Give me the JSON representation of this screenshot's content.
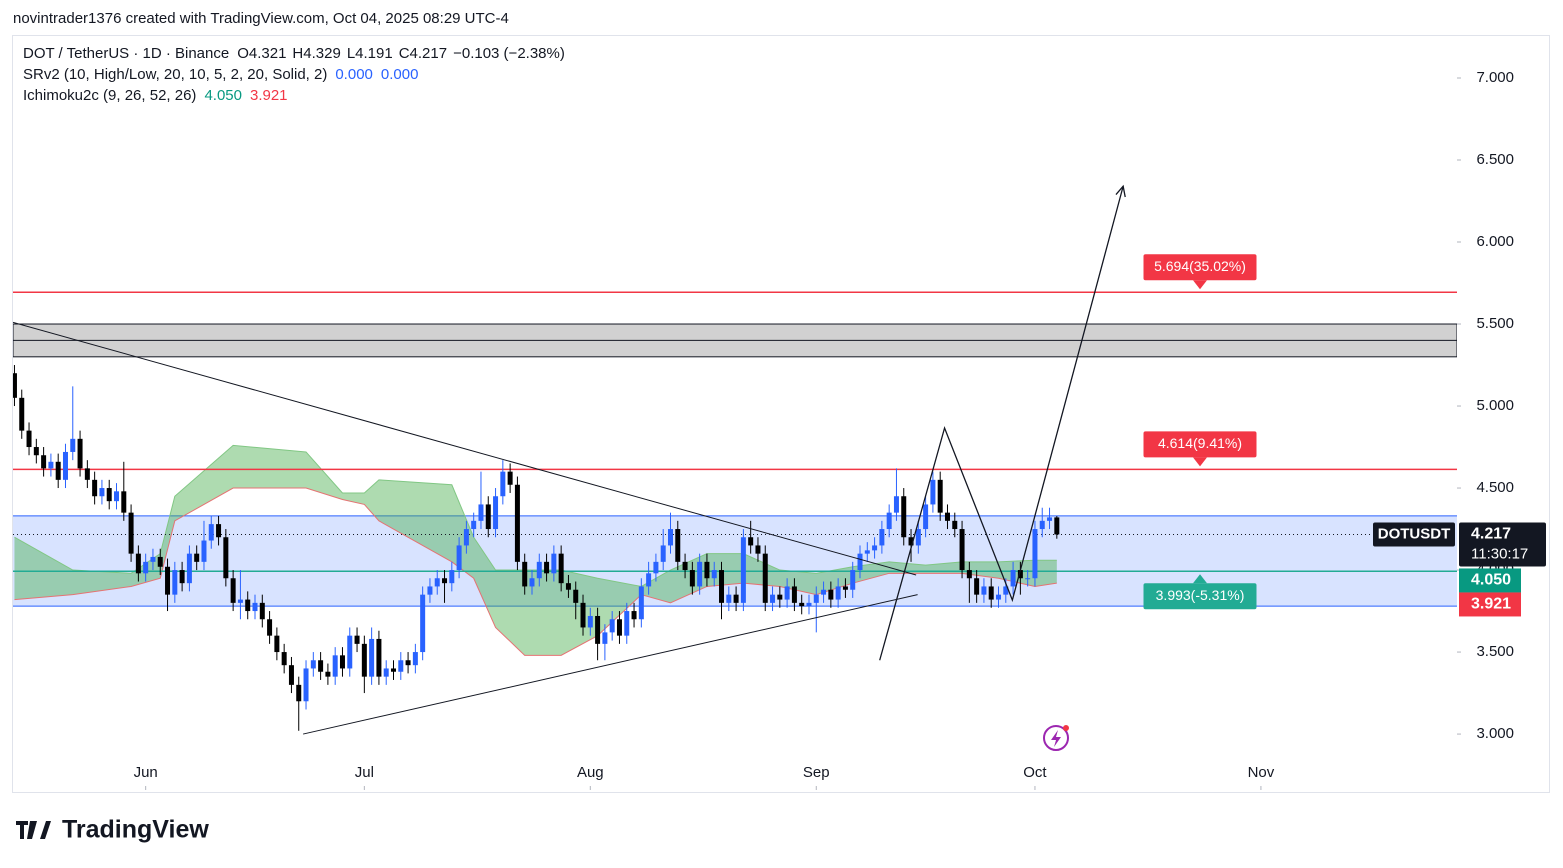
{
  "header": {
    "attribution": "novintrader1376 created with TradingView.com, Oct 04, 2025 08:29 UTC-4"
  },
  "footer": {
    "brand": "TradingView"
  },
  "chart_data": {
    "type": "candlestick",
    "legend": {
      "symbol": "DOT / TetherUS · 1D · Binance",
      "ohlc_keys": [
        "O",
        "H",
        "L",
        "C"
      ],
      "change": "−0.103 (−2.38%)"
    },
    "indicators": [
      {
        "name": "SRv2 (10, High/Low, 20, 10, 5, 2, 20, Solid, 2)",
        "values": [
          0,
          0
        ],
        "value_labels": [
          "0.000",
          "0.000"
        ],
        "colors": [
          "#2962ff",
          "#2962ff"
        ]
      },
      {
        "name": "Ichimoku2c (9, 26, 52, 26)",
        "values": [
          4.05,
          3.921
        ],
        "value_labels": [
          "4.050",
          "3.921"
        ],
        "colors": [
          "#089981",
          "#f23645"
        ]
      }
    ],
    "up_color": "#2962ff",
    "down_color": "#000000",
    "open": [
      5.2,
      5.05,
      4.85,
      4.75,
      4.7,
      4.62,
      4.66,
      4.55,
      4.72,
      4.8,
      4.62,
      4.55,
      4.45,
      4.5,
      4.42,
      4.48,
      4.35,
      4.1,
      3.98,
      4.05,
      4.08,
      4.02,
      3.85,
      4.0,
      3.92,
      4.1,
      4.05,
      4.18,
      4.28,
      4.2,
      3.95,
      3.8,
      3.82,
      3.75,
      3.8,
      3.7,
      3.6,
      3.5,
      3.42,
      3.3,
      3.2,
      3.4,
      3.45,
      3.38,
      3.35,
      3.48,
      3.4,
      3.6,
      3.55,
      3.35,
      3.58,
      3.35,
      3.4,
      3.38,
      3.45,
      3.42,
      3.5,
      3.85,
      3.9,
      3.95,
      3.92,
      4.0,
      4.15,
      4.25,
      4.3,
      4.4,
      4.25,
      4.45,
      4.6,
      4.52,
      4.05,
      3.9,
      3.95,
      4.05,
      3.98,
      4.1,
      3.92,
      3.88,
      3.8,
      3.65,
      3.72,
      3.55,
      3.62,
      3.7,
      3.6,
      3.75,
      3.7,
      3.9,
      3.98,
      4.05,
      4.15,
      4.25,
      4.05,
      4.0,
      3.9,
      4.05,
      3.95,
      4.0,
      3.8,
      3.85,
      3.8,
      4.2,
      4.15,
      4.1,
      3.8,
      3.85,
      3.82,
      3.9,
      3.8,
      3.78,
      3.8,
      3.85,
      3.88,
      3.82,
      3.9,
      3.88,
      4.0,
      4.1,
      4.12,
      4.15,
      4.25,
      4.35,
      4.45,
      4.2,
      4.15,
      4.25,
      4.4,
      4.55,
      4.35,
      4.3,
      4.25,
      4.0,
      3.95,
      3.85,
      3.9,
      3.82,
      3.85,
      3.9,
      4.0,
      3.95,
      3.95,
      4.25,
      4.3,
      4.321
    ],
    "high": [
      5.25,
      5.1,
      4.9,
      4.8,
      4.75,
      4.71,
      4.71,
      4.77,
      5.12,
      4.85,
      4.67,
      4.6,
      4.55,
      4.55,
      4.53,
      4.66,
      4.4,
      4.15,
      4.1,
      4.13,
      4.13,
      4.07,
      4.05,
      4.05,
      4.15,
      4.15,
      4.3,
      4.33,
      4.33,
      4.25,
      4.0,
      4.0,
      3.87,
      3.85,
      3.85,
      3.75,
      3.65,
      3.55,
      3.47,
      3.35,
      3.45,
      3.5,
      3.5,
      3.43,
      3.53,
      3.53,
      3.65,
      3.65,
      3.6,
      3.65,
      3.63,
      3.45,
      3.45,
      3.5,
      3.5,
      3.55,
      3.9,
      3.95,
      4.0,
      4.0,
      4.05,
      4.2,
      4.3,
      4.35,
      4.6,
      4.45,
      4.5,
      4.67,
      4.65,
      4.57,
      4.1,
      4.0,
      4.1,
      4.1,
      4.15,
      4.15,
      3.97,
      3.93,
      3.85,
      3.77,
      3.77,
      3.67,
      3.75,
      3.75,
      3.8,
      3.8,
      3.95,
      4.05,
      4.1,
      4.25,
      4.35,
      4.3,
      4.1,
      4.05,
      4.1,
      4.1,
      4.05,
      4.05,
      3.9,
      3.9,
      4.25,
      4.3,
      4.2,
      4.15,
      3.9,
      3.9,
      3.95,
      3.95,
      3.85,
      3.85,
      3.9,
      3.93,
      3.93,
      3.95,
      3.95,
      4.05,
      4.15,
      4.17,
      4.2,
      4.3,
      4.4,
      4.62,
      4.5,
      4.25,
      4.3,
      4.45,
      4.6,
      4.6,
      4.4,
      4.35,
      4.3,
      4.05,
      4.0,
      3.95,
      3.95,
      3.9,
      3.95,
      4.05,
      4.05,
      4.0,
      4.3,
      4.38,
      4.38,
      4.329
    ],
    "low": [
      5.0,
      4.8,
      4.7,
      4.65,
      4.57,
      4.57,
      4.5,
      4.5,
      4.67,
      4.57,
      4.5,
      4.4,
      4.4,
      4.37,
      4.37,
      4.3,
      4.05,
      3.93,
      3.93,
      4.0,
      3.97,
      3.75,
      3.8,
      3.87,
      3.87,
      4.0,
      4.0,
      4.13,
      4.15,
      3.9,
      3.75,
      3.7,
      3.7,
      3.7,
      3.65,
      3.55,
      3.45,
      3.37,
      3.25,
      3.02,
      3.15,
      3.35,
      3.33,
      3.3,
      3.3,
      3.35,
      3.35,
      3.5,
      3.25,
      3.3,
      3.3,
      3.3,
      3.33,
      3.33,
      3.37,
      3.37,
      3.45,
      3.8,
      3.85,
      3.8,
      3.87,
      3.95,
      4.1,
      4.2,
      4.25,
      4.2,
      4.2,
      4.4,
      4.47,
      4.0,
      3.85,
      3.85,
      3.9,
      3.93,
      3.93,
      3.87,
      3.83,
      3.7,
      3.6,
      3.6,
      3.45,
      3.45,
      3.57,
      3.55,
      3.55,
      3.65,
      3.65,
      3.85,
      3.93,
      4.0,
      4.1,
      4.0,
      3.95,
      3.85,
      3.85,
      3.9,
      3.9,
      3.7,
      3.75,
      3.75,
      3.75,
      4.1,
      4.05,
      3.75,
      3.75,
      3.77,
      3.77,
      3.75,
      3.73,
      3.73,
      3.62,
      3.8,
      3.77,
      3.77,
      3.83,
      3.83,
      3.95,
      4.05,
      4.07,
      4.1,
      4.2,
      4.3,
      4.15,
      4.05,
      4.1,
      4.2,
      4.35,
      4.3,
      4.25,
      4.2,
      3.95,
      3.8,
      3.8,
      3.8,
      3.77,
      3.77,
      3.8,
      3.85,
      3.85,
      3.9,
      3.9,
      4.2,
      4.25,
      4.191
    ],
    "close": [
      5.05,
      4.85,
      4.75,
      4.7,
      4.62,
      4.66,
      4.55,
      4.72,
      4.8,
      4.62,
      4.55,
      4.45,
      4.5,
      4.42,
      4.48,
      4.35,
      4.1,
      3.98,
      4.05,
      4.08,
      4.02,
      3.85,
      4.0,
      3.92,
      4.1,
      4.05,
      4.18,
      4.28,
      4.2,
      3.95,
      3.8,
      3.82,
      3.75,
      3.8,
      3.7,
      3.6,
      3.5,
      3.42,
      3.3,
      3.2,
      3.4,
      3.45,
      3.38,
      3.35,
      3.48,
      3.4,
      3.6,
      3.55,
      3.35,
      3.58,
      3.35,
      3.4,
      3.38,
      3.45,
      3.42,
      3.5,
      3.85,
      3.9,
      3.95,
      3.92,
      4.0,
      4.15,
      4.25,
      4.3,
      4.4,
      4.25,
      4.45,
      4.6,
      4.52,
      4.05,
      3.9,
      3.95,
      4.05,
      3.98,
      4.1,
      3.92,
      3.88,
      3.8,
      3.65,
      3.72,
      3.55,
      3.62,
      3.7,
      3.6,
      3.75,
      3.7,
      3.9,
      3.98,
      4.05,
      4.15,
      4.25,
      4.05,
      4.0,
      3.9,
      4.05,
      3.95,
      4.0,
      3.8,
      3.85,
      3.8,
      4.2,
      4.15,
      4.1,
      3.8,
      3.85,
      3.82,
      3.9,
      3.8,
      3.78,
      3.8,
      3.85,
      3.88,
      3.82,
      3.9,
      3.88,
      4.0,
      4.1,
      4.12,
      4.15,
      4.25,
      4.35,
      4.45,
      4.2,
      4.15,
      4.25,
      4.4,
      4.55,
      4.35,
      4.3,
      4.25,
      4.0,
      3.95,
      3.85,
      3.9,
      3.82,
      3.85,
      3.9,
      4.0,
      3.95,
      3.95,
      4.25,
      4.3,
      4.321,
      4.217
    ],
    "xlim": [
      -0.2,
      197.9
    ],
    "xticks": [
      {
        "value": 18,
        "label": "Jun"
      },
      {
        "value": 48,
        "label": "Jul"
      },
      {
        "value": 79,
        "label": "Aug"
      },
      {
        "value": 110,
        "label": "Sep"
      },
      {
        "value": 140,
        "label": "Oct"
      },
      {
        "value": 171,
        "label": "Nov"
      }
    ],
    "ylim": [
      2.659,
      7.256
    ],
    "yticks": [
      {
        "value": 3,
        "label": "3.000"
      },
      {
        "value": 3.5,
        "label": "3.500"
      },
      {
        "value": 4,
        "label": "4.000"
      },
      {
        "value": 4.5,
        "label": "4.500"
      },
      {
        "value": 5,
        "label": "5.000"
      },
      {
        "value": 5.5,
        "label": "5.500"
      },
      {
        "value": 6,
        "label": "6.000"
      },
      {
        "value": 6.5,
        "label": "6.500"
      },
      {
        "value": 7,
        "label": "7.000"
      }
    ],
    "ichimoku_cloud": {
      "x": [
        0,
        8,
        16,
        20,
        22,
        30,
        40,
        45,
        48,
        50,
        60,
        63,
        66,
        70,
        75,
        80,
        86,
        90,
        95,
        100,
        105,
        110,
        115,
        120,
        125,
        130,
        135,
        140,
        143
      ],
      "span_a": [
        4.2,
        4.0,
        3.98,
        4.1,
        4.45,
        4.76,
        4.72,
        4.47,
        4.47,
        4.55,
        4.52,
        4.2,
        4.0,
        4.0,
        4.0,
        3.95,
        3.9,
        4.0,
        4.1,
        4.1,
        4.0,
        3.98,
        4.02,
        4.05,
        4.03,
        4.05,
        4.05,
        4.06,
        4.06
      ],
      "span_b": [
        3.82,
        3.85,
        3.9,
        3.95,
        4.3,
        4.5,
        4.5,
        4.43,
        4.4,
        4.3,
        4.05,
        3.95,
        3.65,
        3.48,
        3.48,
        3.6,
        3.85,
        3.8,
        3.9,
        3.92,
        3.9,
        3.85,
        3.92,
        3.98,
        3.98,
        3.98,
        3.95,
        3.9,
        3.92
      ]
    },
    "band": {
      "from": 3.78,
      "to": 4.33
    },
    "zone": {
      "from": 5.3,
      "to": 5.5,
      "mid": 5.4
    },
    "levels": [
      {
        "value": 5.694,
        "label": "5.694(35.02%)",
        "color": "#f23645"
      },
      {
        "value": 4.614,
        "label": "4.614(9.41%)",
        "color": "#f23645"
      },
      {
        "value": 3.993,
        "label": "3.993(-5.31%)",
        "color": "#22ab94"
      }
    ],
    "trendlines": [
      {
        "x": [
          -0.2,
          123.7
        ],
        "y": [
          5.51,
          3.97
        ]
      },
      {
        "x": [
          39.6,
          123.9
        ],
        "y": [
          3.0,
          3.85
        ]
      }
    ],
    "projection": {
      "x": [
        118.7,
        127.6,
        136.9,
        152.1
      ],
      "y": [
        3.45,
        4.866,
        3.817,
        6.34
      ]
    },
    "symbol_tag": "DOTUSDT",
    "countdown": "11:30:17"
  }
}
